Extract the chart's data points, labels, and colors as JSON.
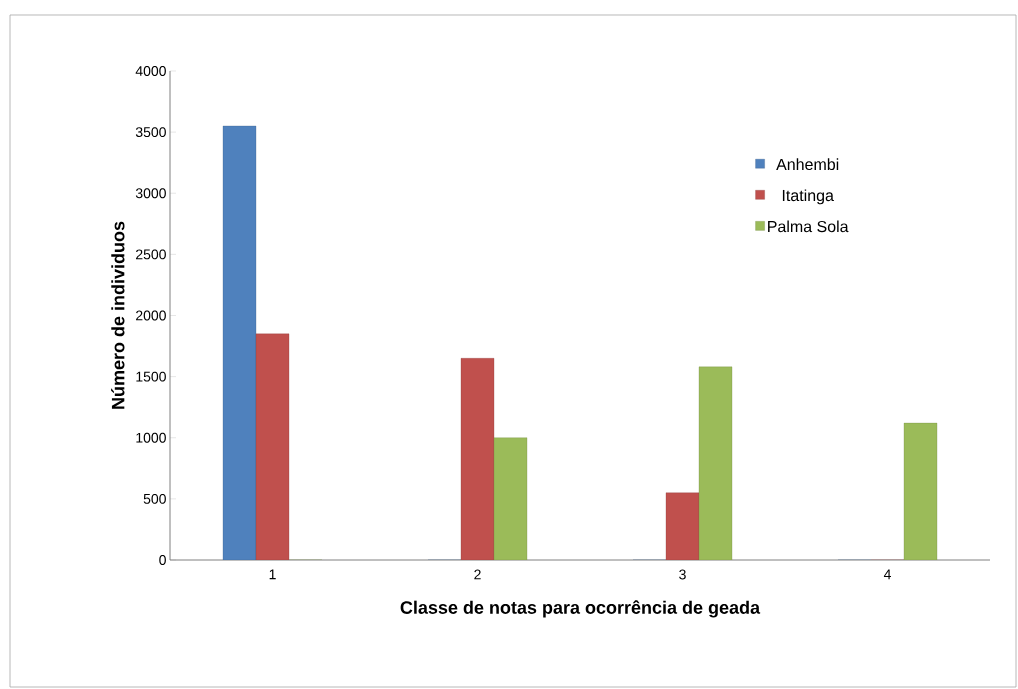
{
  "chart_data": {
    "type": "bar",
    "xlabel": "Classe de notas para ocorrência de geada",
    "ylabel": "Número de individuos",
    "categories": [
      "1",
      "2",
      "3",
      "4"
    ],
    "series": [
      {
        "name": "Anhembi",
        "color": "#4f81bd",
        "values": [
          3550,
          0,
          0,
          0
        ]
      },
      {
        "name": "Itatinga",
        "color": "#c0504d",
        "values": [
          1850,
          1650,
          550,
          0
        ]
      },
      {
        "name": "Palma Sola",
        "color": "#9bbb59",
        "values": [
          0,
          1000,
          1580,
          1120
        ]
      }
    ],
    "ylim": [
      0,
      4000
    ],
    "yticks": [
      0,
      500,
      1000,
      1500,
      2000,
      2500,
      3000,
      3500,
      4000
    ],
    "grid": false,
    "legend": "right"
  }
}
